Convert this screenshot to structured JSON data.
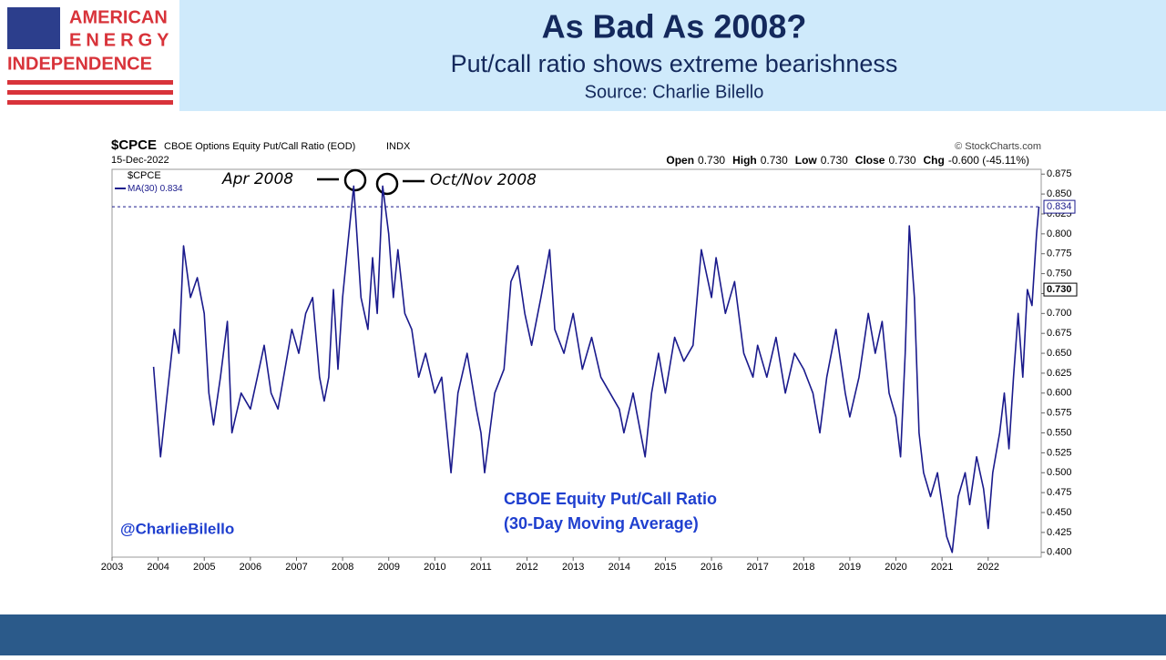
{
  "header": {
    "logo": [
      "AMERICAN",
      "ENERGY",
      "INDEPENDENCE"
    ],
    "title": "As Bad As 2008?",
    "subtitle": "Put/call ratio shows extreme bearishness",
    "source": "Source: Charlie Bilello"
  },
  "chart_data": {
    "type": "line",
    "title": "$CPCE",
    "subtitle": "CBOE Options Equity Put/Call Ratio (EOD)",
    "exchange": "INDX",
    "date": "15-Dec-2022",
    "credit": "© StockCharts.com",
    "quote": [
      {
        "label": "Open",
        "text": "0.730"
      },
      {
        "label": "High",
        "text": "0.730"
      },
      {
        "label": "Low",
        "text": "0.730"
      },
      {
        "label": "Close",
        "text": "0.730"
      },
      {
        "label": "Chg",
        "text": "-0.600 (-45.11%)"
      }
    ],
    "symbol": "$CPCE",
    "last_ma": {
      "value": 0.834,
      "label": "0.834"
    },
    "last_close": {
      "value": 0.73,
      "label": "0.730"
    },
    "annotations": [
      "Apr 2008",
      "Oct/Nov 2008",
      "CBOE Equity Put/Call Ratio",
      "(30-Day Moving Average)",
      "@CharlieBilello"
    ],
    "x": [
      2003.9,
      2004.05,
      2004.2,
      2004.35,
      2004.45,
      2004.55,
      2004.7,
      2004.85,
      2005.0,
      2005.1,
      2005.2,
      2005.35,
      2005.5,
      2005.6,
      2005.8,
      2006.0,
      2006.15,
      2006.3,
      2006.45,
      2006.6,
      2006.75,
      2006.9,
      2007.05,
      2007.2,
      2007.35,
      2007.5,
      2007.6,
      2007.7,
      2007.8,
      2007.9,
      2008.0,
      2008.1,
      2008.24,
      2008.4,
      2008.55,
      2008.65,
      2008.75,
      2008.87,
      2009.0,
      2009.1,
      2009.2,
      2009.35,
      2009.5,
      2009.65,
      2009.8,
      2010.0,
      2010.15,
      2010.35,
      2010.5,
      2010.7,
      2010.9,
      2011.0,
      2011.08,
      2011.3,
      2011.5,
      2011.65,
      2011.8,
      2011.95,
      2012.1,
      2012.3,
      2012.49,
      2012.6,
      2012.8,
      2013.0,
      2013.2,
      2013.4,
      2013.6,
      2013.8,
      2014.0,
      2014.1,
      2014.3,
      2014.56,
      2014.7,
      2014.85,
      2015.0,
      2015.2,
      2015.4,
      2015.6,
      2015.78,
      2016.0,
      2016.1,
      2016.3,
      2016.5,
      2016.7,
      2016.9,
      2017.0,
      2017.2,
      2017.4,
      2017.6,
      2017.8,
      2018.0,
      2018.2,
      2018.35,
      2018.5,
      2018.7,
      2018.9,
      2019.0,
      2019.2,
      2019.4,
      2019.55,
      2019.7,
      2019.85,
      2020.0,
      2020.1,
      2020.2,
      2020.29,
      2020.4,
      2020.5,
      2020.6,
      2020.75,
      2020.9,
      2021.0,
      2021.1,
      2021.22,
      2021.35,
      2021.5,
      2021.6,
      2021.75,
      2021.9,
      2022.0,
      2022.1,
      2022.25,
      2022.35,
      2022.45,
      2022.55,
      2022.65,
      2022.75,
      2022.85,
      2022.95,
      2023.05,
      2023.1
    ],
    "series": [
      {
        "name": "MA(30)",
        "color": "#1a1a8c",
        "values": [
          0.633,
          0.52,
          0.6,
          0.68,
          0.65,
          0.785,
          0.72,
          0.745,
          0.7,
          0.6,
          0.56,
          0.62,
          0.69,
          0.55,
          0.6,
          0.58,
          0.62,
          0.66,
          0.6,
          0.58,
          0.63,
          0.68,
          0.65,
          0.7,
          0.72,
          0.62,
          0.59,
          0.62,
          0.73,
          0.63,
          0.72,
          0.78,
          0.86,
          0.72,
          0.68,
          0.77,
          0.7,
          0.86,
          0.8,
          0.72,
          0.78,
          0.7,
          0.68,
          0.62,
          0.65,
          0.6,
          0.62,
          0.5,
          0.6,
          0.65,
          0.58,
          0.55,
          0.5,
          0.6,
          0.63,
          0.74,
          0.76,
          0.7,
          0.66,
          0.72,
          0.78,
          0.68,
          0.65,
          0.7,
          0.63,
          0.67,
          0.62,
          0.6,
          0.58,
          0.55,
          0.6,
          0.52,
          0.6,
          0.65,
          0.6,
          0.67,
          0.64,
          0.66,
          0.78,
          0.72,
          0.77,
          0.7,
          0.74,
          0.65,
          0.62,
          0.66,
          0.62,
          0.67,
          0.6,
          0.65,
          0.63,
          0.6,
          0.55,
          0.62,
          0.68,
          0.6,
          0.57,
          0.62,
          0.7,
          0.65,
          0.69,
          0.6,
          0.57,
          0.52,
          0.65,
          0.81,
          0.72,
          0.55,
          0.5,
          0.47,
          0.5,
          0.46,
          0.42,
          0.4,
          0.47,
          0.5,
          0.46,
          0.52,
          0.48,
          0.43,
          0.5,
          0.55,
          0.6,
          0.53,
          0.62,
          0.7,
          0.62,
          0.73,
          0.71,
          0.8,
          0.834
        ]
      }
    ],
    "xlim": [
      2003,
      2023.15
    ],
    "xticks": [
      2003,
      2004,
      2005,
      2006,
      2007,
      2008,
      2009,
      2010,
      2011,
      2012,
      2013,
      2014,
      2015,
      2016,
      2017,
      2018,
      2019,
      2020,
      2021,
      2022
    ],
    "ylim": [
      0.394,
      0.881
    ],
    "yticks": [
      {
        "value": 0.4,
        "label": "0.400"
      },
      {
        "value": 0.425,
        "label": "0.425"
      },
      {
        "value": 0.45,
        "label": "0.450"
      },
      {
        "value": 0.475,
        "label": "0.475"
      },
      {
        "value": 0.5,
        "label": "0.500"
      },
      {
        "value": 0.525,
        "label": "0.525"
      },
      {
        "value": 0.55,
        "label": "0.550"
      },
      {
        "value": 0.575,
        "label": "0.575"
      },
      {
        "value": 0.6,
        "label": "0.600"
      },
      {
        "value": 0.625,
        "label": "0.625"
      },
      {
        "value": 0.65,
        "label": "0.650"
      },
      {
        "value": 0.675,
        "label": "0.675"
      },
      {
        "value": 0.7,
        "label": "0.700"
      },
      {
        "value": 0.725,
        "label": "0.725"
      },
      {
        "value": 0.75,
        "label": "0.750"
      },
      {
        "value": 0.775,
        "label": "0.775"
      },
      {
        "value": 0.8,
        "label": "0.800"
      },
      {
        "value": 0.825,
        "label": "0.825"
      },
      {
        "value": 0.85,
        "label": "0.850"
      },
      {
        "value": 0.875,
        "label": "0.875"
      }
    ],
    "grid": false
  }
}
